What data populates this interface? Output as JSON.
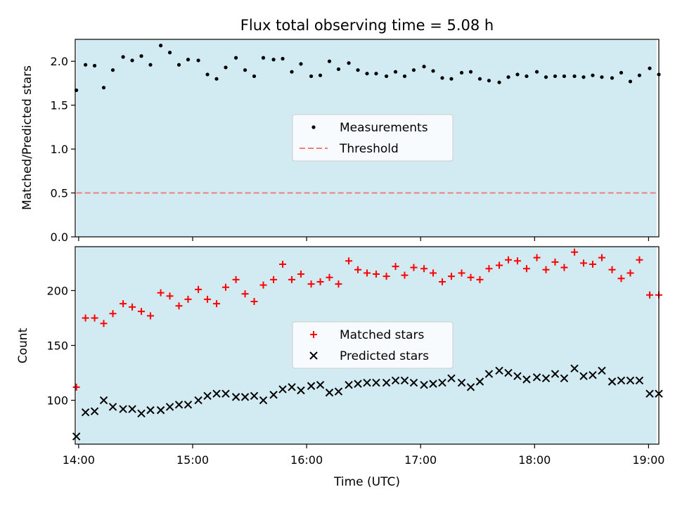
{
  "chart_data": [
    {
      "type": "scatter",
      "title": "Flux total observing time = 5.08 h",
      "xlabel": "",
      "ylabel": "Matched/Predicted stars",
      "xlim": [
        13.97,
        19.09
      ],
      "ylim": [
        0,
        2.25
      ],
      "yticks": [
        "0.0",
        "0.5",
        "1.0",
        "1.5",
        "2.0"
      ],
      "ytick_values": [
        0,
        0.5,
        1.0,
        1.5,
        2.0
      ],
      "shaded_span": [
        13.98,
        19.07
      ],
      "shade_color": "#add8e6",
      "threshold": 0.5,
      "threshold_color": "#f08080",
      "legend": {
        "location": "center",
        "entries": [
          "Measurements",
          "Threshold"
        ]
      },
      "series": [
        {
          "name": "Measurements",
          "color": "#000000",
          "x": [
            13.98,
            14.06,
            14.14,
            14.22,
            14.3,
            14.39,
            14.47,
            14.55,
            14.63,
            14.72,
            14.8,
            14.88,
            14.96,
            15.05,
            15.13,
            15.21,
            15.29,
            15.38,
            15.46,
            15.54,
            15.62,
            15.71,
            15.79,
            15.87,
            15.95,
            16.04,
            16.12,
            16.2,
            16.28,
            16.37,
            16.45,
            16.53,
            16.61,
            16.7,
            16.78,
            16.86,
            16.94,
            17.03,
            17.11,
            17.19,
            17.27,
            17.36,
            17.44,
            17.52,
            17.6,
            17.69,
            17.77,
            17.85,
            17.93,
            18.02,
            18.1,
            18.18,
            18.26,
            18.35,
            18.43,
            18.51,
            18.59,
            18.68,
            18.76,
            18.84,
            18.92,
            19.01,
            19.09
          ],
          "y": [
            1.67,
            1.96,
            1.95,
            1.7,
            1.9,
            2.05,
            2.01,
            2.06,
            1.96,
            2.18,
            2.1,
            1.96,
            2.02,
            2.01,
            1.85,
            1.8,
            1.93,
            2.04,
            1.9,
            1.83,
            2.04,
            2.02,
            2.03,
            1.88,
            1.97,
            1.83,
            1.84,
            2.0,
            1.91,
            1.98,
            1.9,
            1.86,
            1.86,
            1.83,
            1.88,
            1.83,
            1.9,
            1.94,
            1.89,
            1.81,
            1.8,
            1.87,
            1.88,
            1.8,
            1.78,
            1.76,
            1.82,
            1.85,
            1.83,
            1.88,
            1.82,
            1.83,
            1.83,
            1.83,
            1.82,
            1.84,
            1.82,
            1.81,
            1.87,
            1.77,
            1.84,
            1.92,
            1.85
          ]
        }
      ]
    },
    {
      "type": "scatter",
      "title": "",
      "xlabel": "Time (UTC)",
      "ylabel": "Count",
      "xlim": [
        13.97,
        19.09
      ],
      "ylim": [
        60,
        240
      ],
      "yticks": [
        "100",
        "150",
        "200"
      ],
      "ytick_values": [
        100,
        150,
        200
      ],
      "xticks": [
        "14:00",
        "15:00",
        "16:00",
        "17:00",
        "18:00",
        "19:00"
      ],
      "xtick_values": [
        14,
        15,
        16,
        17,
        18,
        19
      ],
      "shaded_span": [
        13.98,
        19.07
      ],
      "shade_color": "#add8e6",
      "legend": {
        "location": "center",
        "entries": [
          "Matched stars",
          "Predicted stars"
        ]
      },
      "series": [
        {
          "name": "Matched stars",
          "marker": "+",
          "color": "#ff0000",
          "x": [
            13.98,
            14.06,
            14.14,
            14.22,
            14.3,
            14.39,
            14.47,
            14.55,
            14.63,
            14.72,
            14.8,
            14.88,
            14.96,
            15.05,
            15.13,
            15.21,
            15.29,
            15.38,
            15.46,
            15.54,
            15.62,
            15.71,
            15.79,
            15.87,
            15.95,
            16.04,
            16.12,
            16.2,
            16.28,
            16.37,
            16.45,
            16.53,
            16.61,
            16.7,
            16.78,
            16.86,
            16.94,
            17.03,
            17.11,
            17.19,
            17.27,
            17.36,
            17.44,
            17.52,
            17.6,
            17.69,
            17.77,
            17.85,
            17.93,
            18.02,
            18.1,
            18.18,
            18.26,
            18.35,
            18.43,
            18.51,
            18.59,
            18.68,
            18.76,
            18.84,
            18.92,
            19.01,
            19.09
          ],
          "y": [
            112,
            175,
            175,
            170,
            179,
            188,
            185,
            181,
            177,
            198,
            195,
            186,
            192,
            201,
            192,
            188,
            203,
            210,
            197,
            190,
            205,
            210,
            224,
            210,
            215,
            206,
            208,
            212,
            206,
            227,
            219,
            216,
            215,
            213,
            222,
            214,
            221,
            220,
            216,
            208,
            213,
            216,
            212,
            210,
            220,
            223,
            228,
            227,
            220,
            230,
            219,
            226,
            221,
            235,
            225,
            224,
            230,
            219,
            211,
            216,
            228,
            196,
            196
          ]
        },
        {
          "name": "Predicted stars",
          "marker": "x",
          "color": "#000000",
          "x": [
            13.98,
            14.06,
            14.14,
            14.22,
            14.3,
            14.39,
            14.47,
            14.55,
            14.63,
            14.72,
            14.8,
            14.88,
            14.96,
            15.05,
            15.13,
            15.21,
            15.29,
            15.38,
            15.46,
            15.54,
            15.62,
            15.71,
            15.79,
            15.87,
            15.95,
            16.04,
            16.12,
            16.2,
            16.28,
            16.37,
            16.45,
            16.53,
            16.61,
            16.7,
            16.78,
            16.86,
            16.94,
            17.03,
            17.11,
            17.19,
            17.27,
            17.36,
            17.44,
            17.52,
            17.6,
            17.69,
            17.77,
            17.85,
            17.93,
            18.02,
            18.1,
            18.18,
            18.26,
            18.35,
            18.43,
            18.51,
            18.59,
            18.68,
            18.76,
            18.84,
            18.92,
            19.01,
            19.09
          ],
          "y": [
            67,
            89,
            90,
            100,
            94,
            92,
            92,
            88,
            91,
            91,
            94,
            96,
            96,
            100,
            104,
            106,
            106,
            103,
            103,
            104,
            100,
            105,
            110,
            112,
            109,
            113,
            114,
            107,
            108,
            114,
            115,
            116,
            116,
            116,
            118,
            118,
            116,
            114,
            115,
            116,
            120,
            116,
            112,
            117,
            124,
            127,
            125,
            122,
            119,
            121,
            120,
            124,
            120,
            129,
            122,
            123,
            127,
            117,
            118,
            118,
            118,
            106,
            106
          ]
        }
      ]
    }
  ]
}
